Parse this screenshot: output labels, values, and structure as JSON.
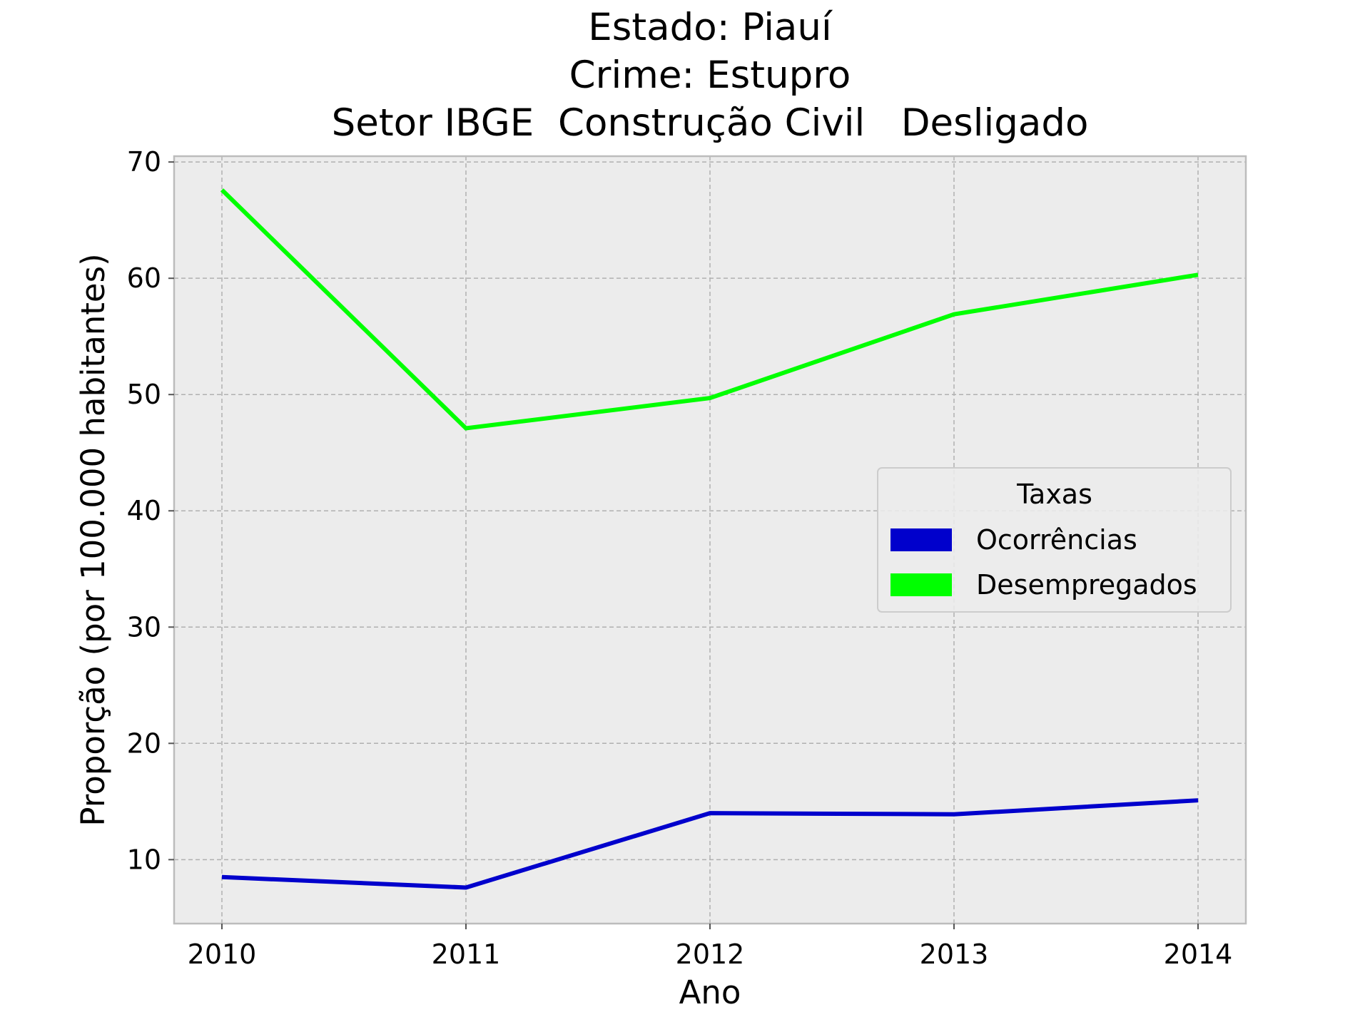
{
  "chart_data": {
    "type": "line",
    "title_lines": [
      "Estado: Piauí",
      "Crime: Estupro",
      "Setor IBGE  Construção Civil   Desligado"
    ],
    "xlabel": "Ano",
    "ylabel": "Proporção (por 100.000 habitantes)",
    "x": [
      "2010",
      "2011",
      "2012",
      "2013",
      "2014"
    ],
    "ylim": [
      4.5,
      70.5
    ],
    "yticks": [
      10,
      20,
      30,
      40,
      50,
      60,
      70
    ],
    "grid": true,
    "legend": {
      "title": "Taxas",
      "placement": "center-right"
    },
    "series": [
      {
        "name": "Ocorrências",
        "color": "#0000cc",
        "values": [
          8.5,
          7.6,
          14.0,
          13.9,
          15.1
        ]
      },
      {
        "name": "Desempregados",
        "color": "#00ff00",
        "values": [
          67.6,
          47.1,
          49.7,
          56.9,
          60.3
        ]
      }
    ],
    "colors": {
      "plot_background": "#ececec",
      "grid": "#b0b0b0",
      "frame": "#bcbcbc"
    }
  }
}
